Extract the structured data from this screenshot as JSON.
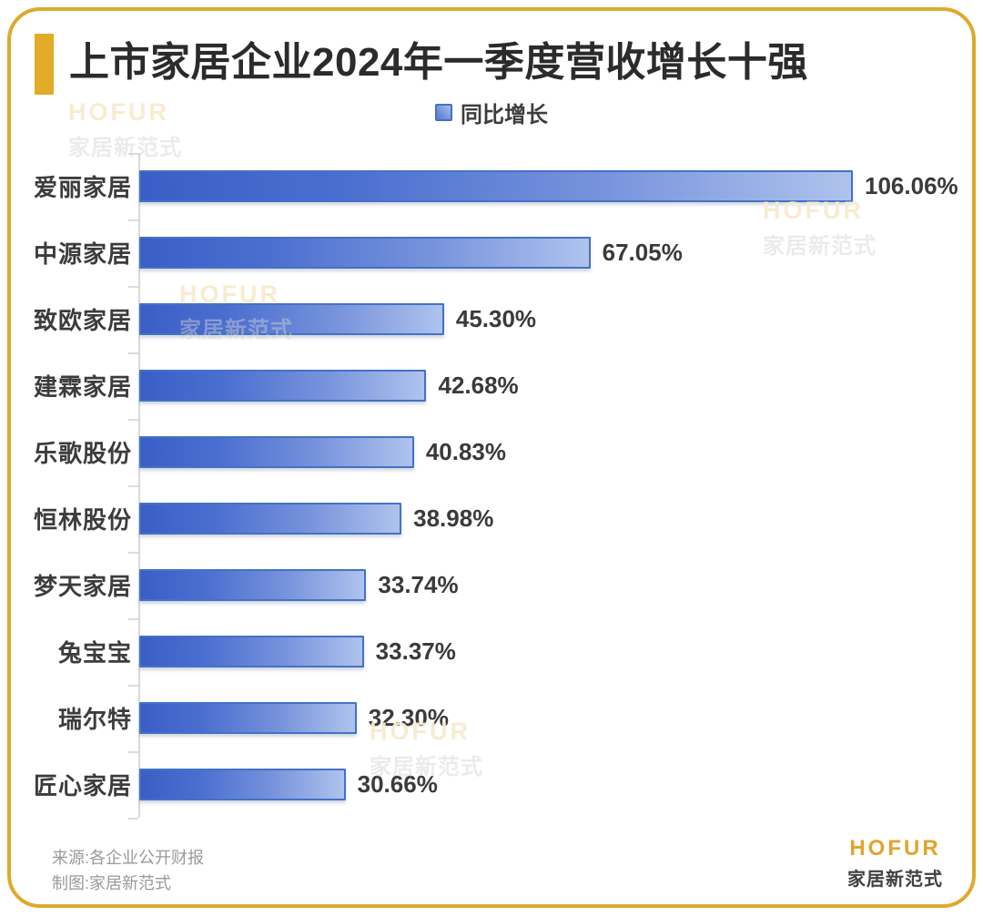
{
  "header": {
    "title": "上市家居企业2024年一季度营收增长十强"
  },
  "legend": {
    "label": "同比增长"
  },
  "watermark": {
    "line1": "HOFUR",
    "line2": "家居新范式"
  },
  "chart_data": {
    "type": "bar",
    "orientation": "horizontal",
    "title": "上市家居企业2024年一季度营收增长十强",
    "legend_entries": [
      "同比增长"
    ],
    "categories": [
      "爱丽家居",
      "中源家居",
      "致欧家居",
      "建霖家居",
      "乐歌股份",
      "恒林股份",
      "梦天家居",
      "兔宝宝",
      "瑞尔特",
      "匠心家居"
    ],
    "values": [
      106.06,
      67.05,
      45.3,
      42.68,
      40.83,
      38.98,
      33.74,
      33.37,
      32.3,
      30.66
    ],
    "labels": [
      "106.06%",
      "67.05%",
      "45.30%",
      "42.68%",
      "40.83%",
      "38.98%",
      "33.74%",
      "33.37%",
      "32.30%",
      "30.66%"
    ],
    "unit": "%",
    "xlim": [
      0,
      106.06
    ],
    "grid": false,
    "legend_position": "top-center",
    "bar_gradient": [
      "#3A5EC5",
      "#AFC3ED"
    ],
    "bar_border_color": "#4472C4"
  },
  "footer": {
    "source_line1": "来源:各企业公开财报",
    "source_line2": "制图:家居新范式",
    "logo_en": "HOFUR",
    "logo_cn": "家居新范式"
  },
  "colors": {
    "accent_gold": "#E2AC29",
    "border_gold": "#DFA92B",
    "title_text": "#2B2B2B",
    "category_text": "#3C3C3C",
    "value_text": "#3A3A3A",
    "source_text": "#9A9A9A",
    "logo_gold": "#E0A42E",
    "axis_gray": "#D9D9D9"
  }
}
